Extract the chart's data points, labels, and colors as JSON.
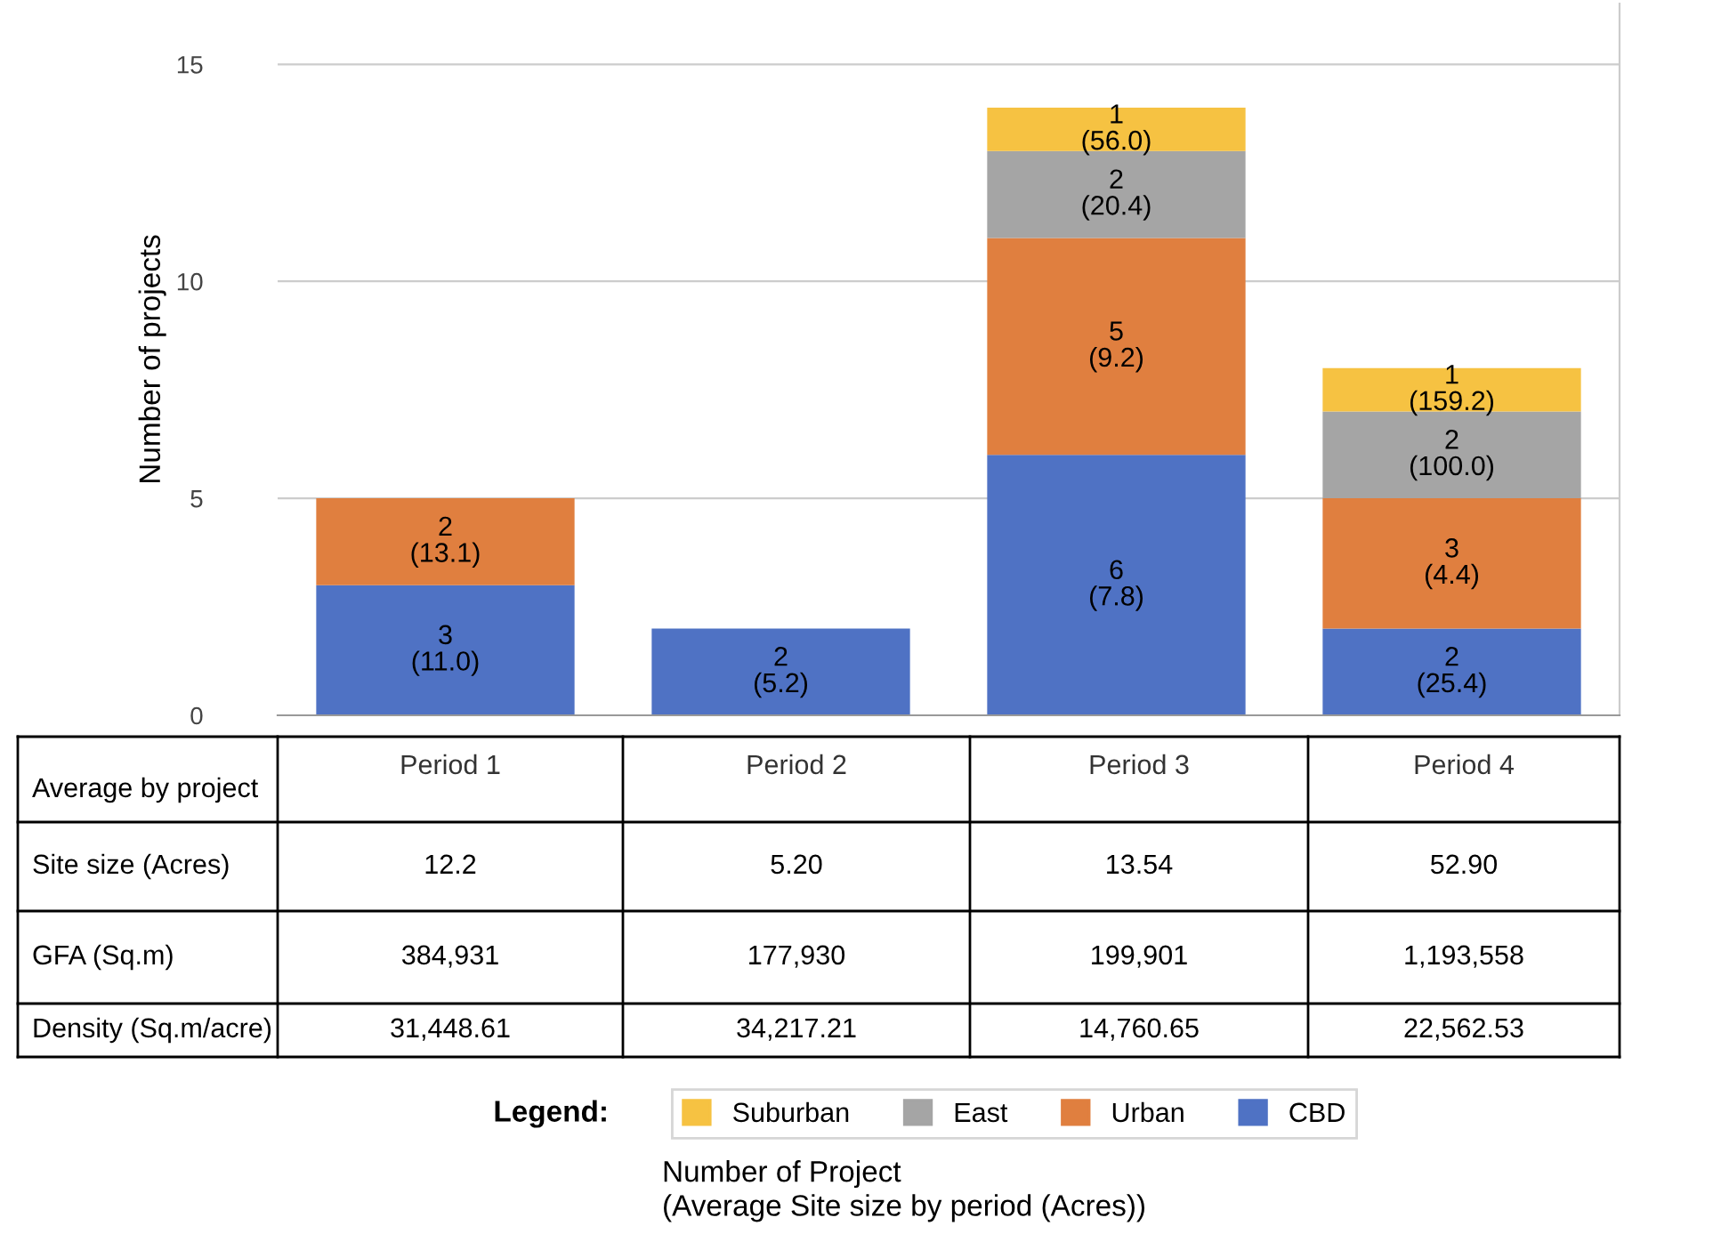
{
  "chart_data": {
    "type": "bar",
    "stacked": true,
    "ylabel": "Number of projects",
    "categories": [
      "Period 1",
      "Period 2",
      "Period 3",
      "Period 4"
    ],
    "series": [
      {
        "name": "CBD",
        "color": "#4f72c4",
        "values": [
          3,
          2,
          6,
          2
        ],
        "value_labels": [
          "3\n(11.0)",
          "2\n(5.2)",
          "6\n(7.8)",
          "2\n(25.4)"
        ]
      },
      {
        "name": "Urban",
        "color": "#e07f3f",
        "values": [
          2,
          null,
          5,
          3
        ],
        "value_labels": [
          "2\n(13.1)",
          null,
          "5\n(9.2)",
          "3\n(4.4)"
        ]
      },
      {
        "name": "East",
        "color": "#a5a5a5",
        "values": [
          null,
          null,
          2,
          2
        ],
        "value_labels": [
          null,
          null,
          "2\n(20.4)",
          "2\n(100.0)"
        ]
      },
      {
        "name": "Suburban",
        "color": "#f6c242",
        "values": [
          null,
          null,
          1,
          1
        ],
        "value_labels": [
          null,
          null,
          "1\n(56.0)",
          "1\n(159.2)"
        ]
      }
    ],
    "ylim": [
      0,
      16.4
    ],
    "yticks": [
      0,
      5,
      10,
      15
    ],
    "grid": "y",
    "legend": "bottom",
    "legend_title": "Legend:",
    "tick_labels": "y",
    "annotations": [
      "Average by project",
      "Site size (Acres)",
      "12.2",
      "5.20",
      "13.54",
      "52.90",
      "GFA (Sq.m)",
      "384,931",
      "177,930",
      "199,901",
      "1,193,558",
      "Density (Sq.m/acre)",
      "31,448.61",
      "34,217.21",
      "14,760.65",
      "22,562.53",
      "Number of Project\n(Average Site size by period (Acres))"
    ]
  }
}
